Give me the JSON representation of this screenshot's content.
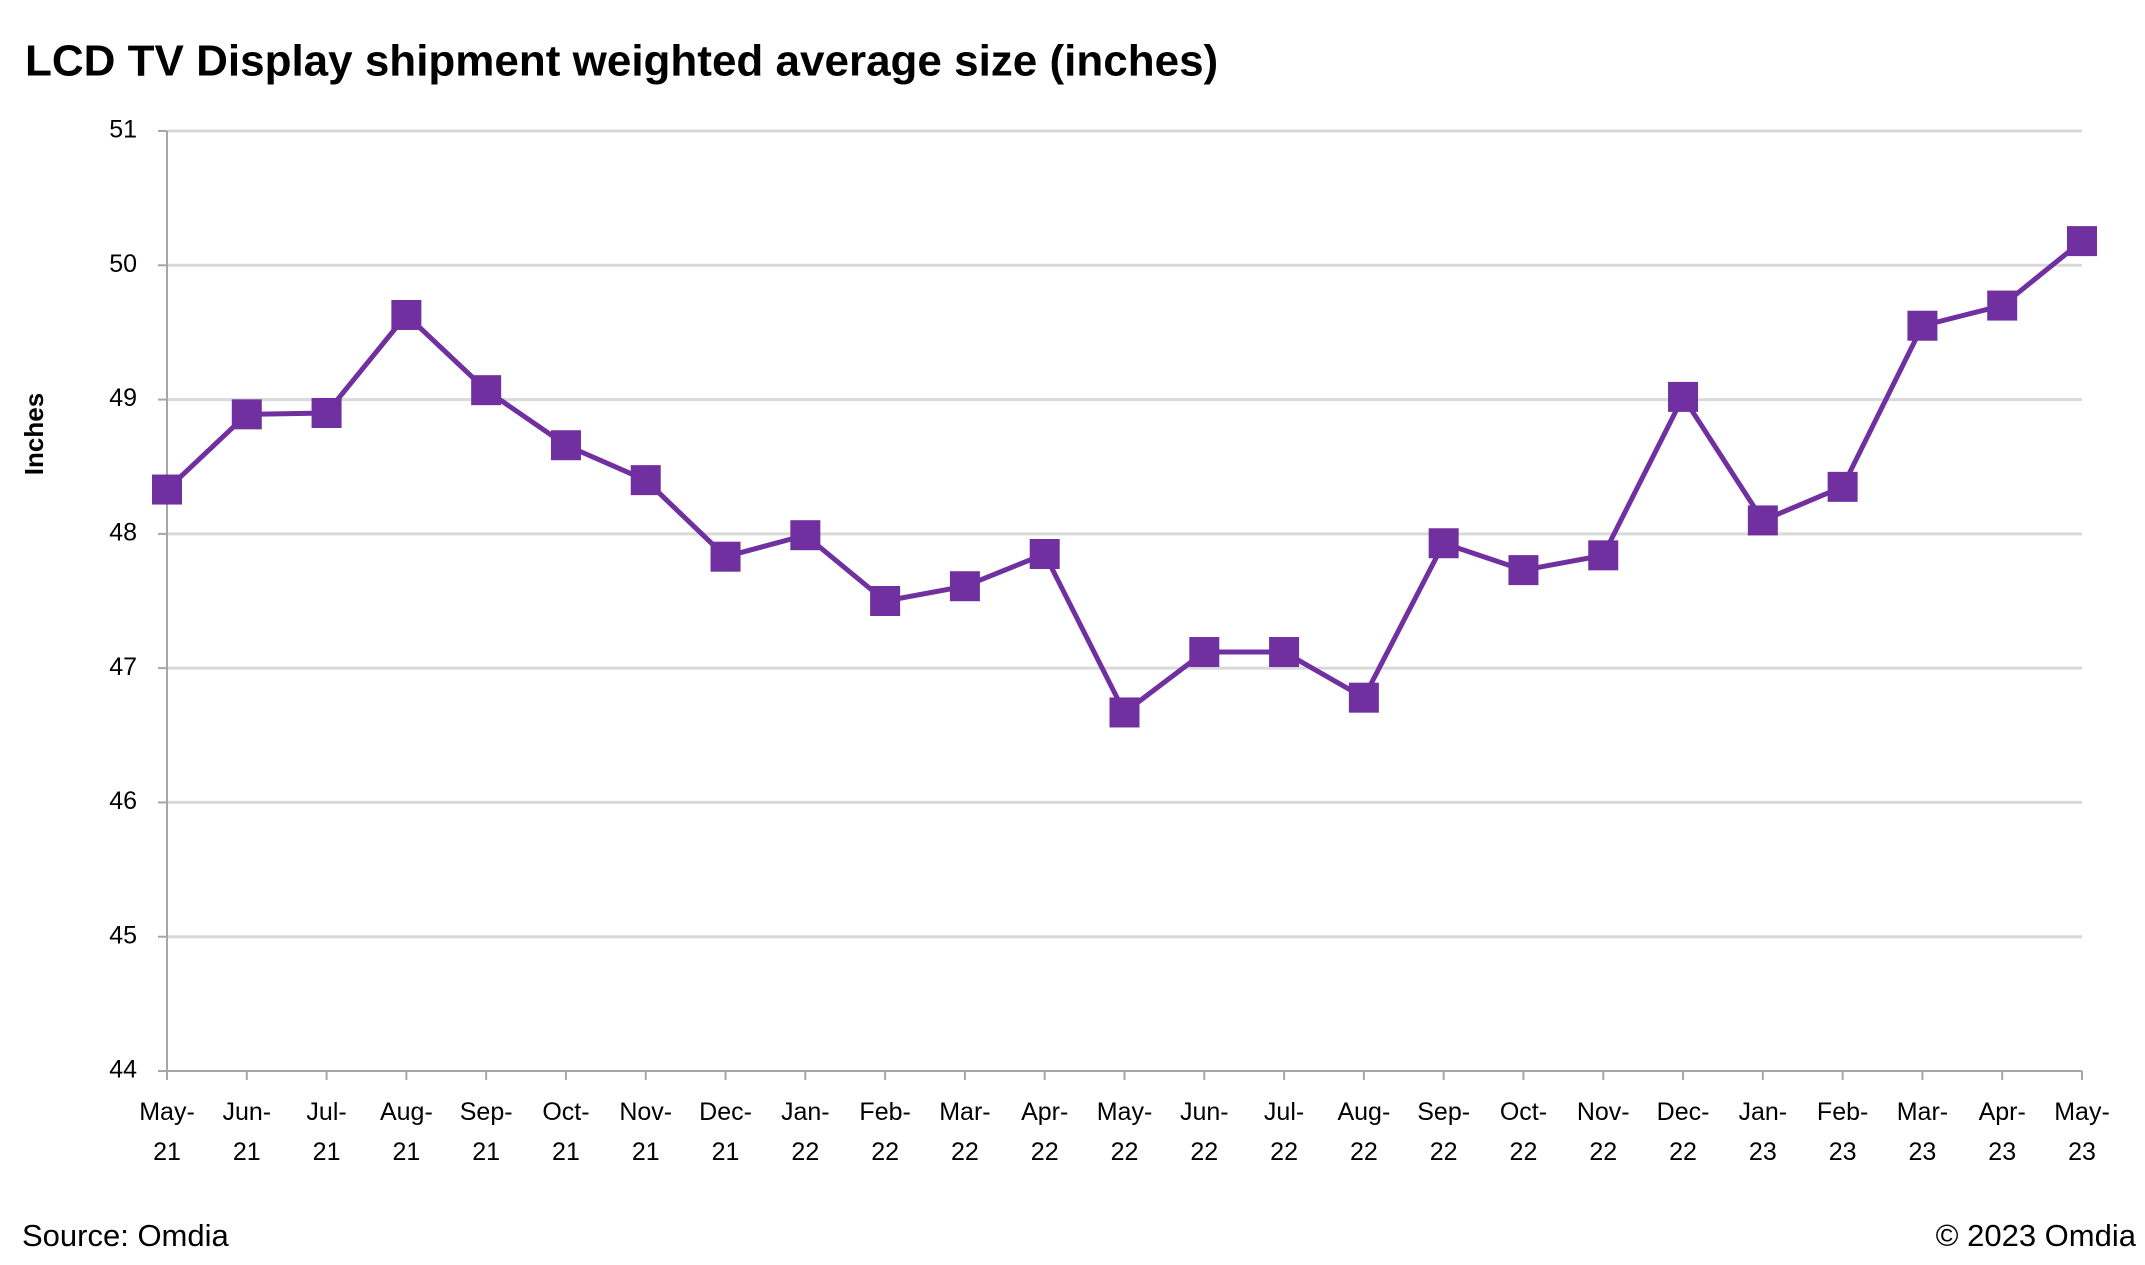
{
  "chart_data": {
    "type": "line",
    "title": "LCD TV Display shipment weighted average size (inches)",
    "y_label": "Inches",
    "source": "Source: Omdia",
    "copyright": "© 2023 Omdia",
    "categories": [
      "May-21",
      "Jun-21",
      "Jul-21",
      "Aug-21",
      "Sep-21",
      "Oct-21",
      "Nov-21",
      "Dec-21",
      "Jan-22",
      "Feb-22",
      "Mar-22",
      "Apr-22",
      "May-22",
      "Jun-22",
      "Jul-22",
      "Aug-22",
      "Sep-22",
      "Oct-22",
      "Nov-22",
      "Dec-22",
      "Jan-23",
      "Feb-23",
      "Mar-23",
      "Apr-23",
      "May-23"
    ],
    "series": [
      {
        "name": "Inches",
        "color": "#7030a0",
        "values": [
          48.33,
          48.89,
          48.9,
          49.63,
          49.07,
          48.66,
          48.4,
          47.83,
          47.99,
          47.5,
          47.61,
          47.85,
          46.67,
          47.12,
          47.12,
          46.78,
          47.93,
          47.73,
          47.84,
          49.02,
          48.1,
          48.35,
          49.55,
          49.7,
          50.18
        ]
      }
    ],
    "ylim": [
      44,
      51
    ],
    "yticks": [
      44,
      45,
      46,
      47,
      48,
      49,
      50,
      51
    ],
    "grid": true
  }
}
